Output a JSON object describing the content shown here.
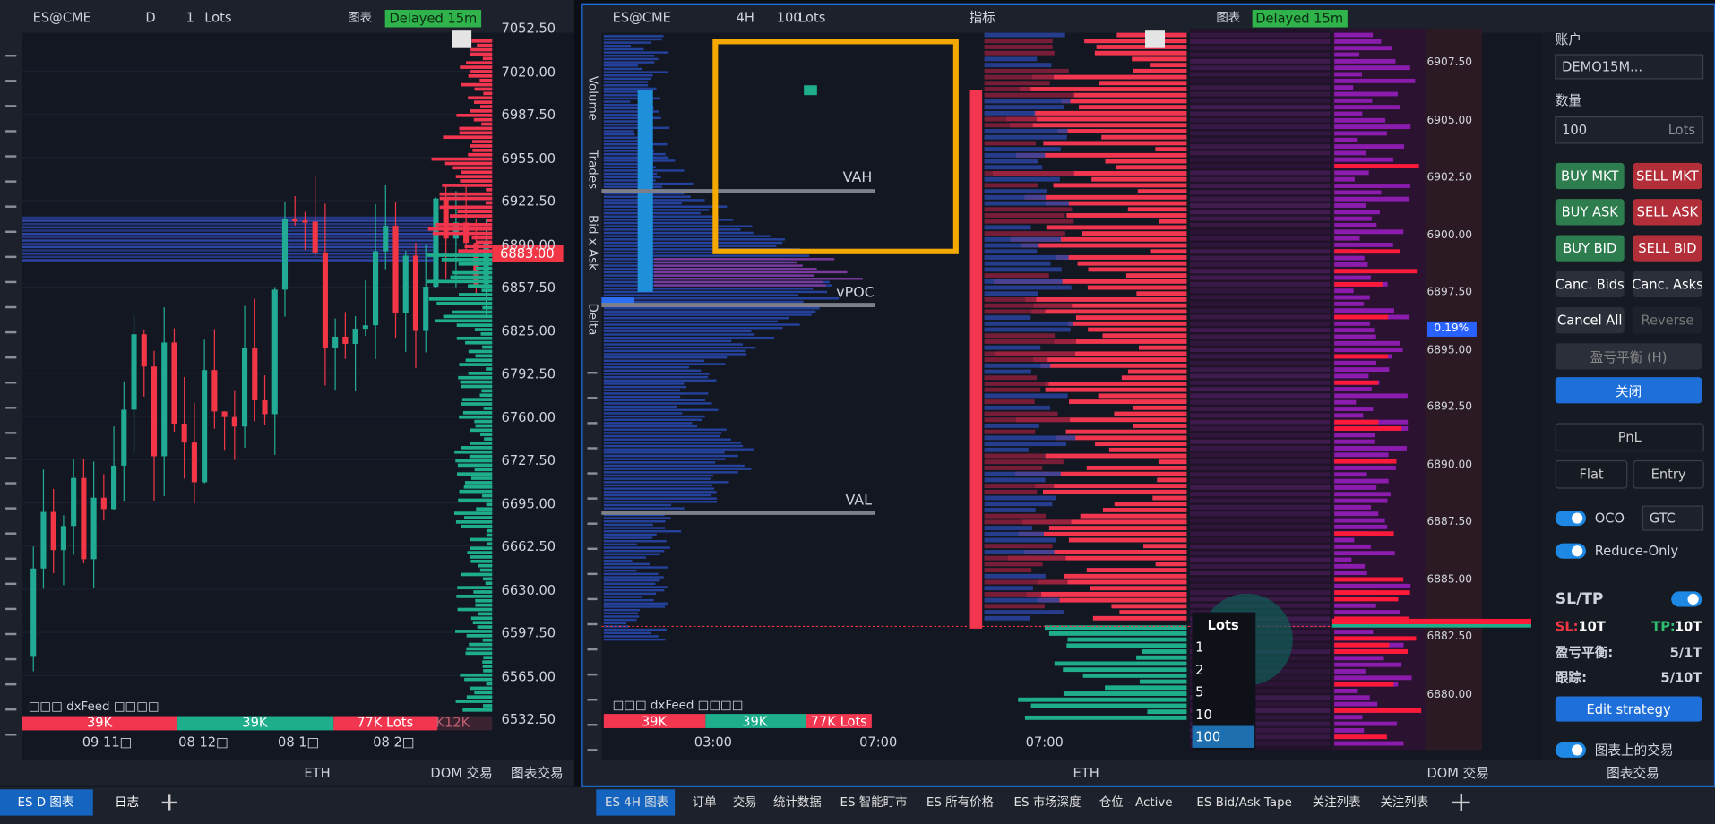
{
  "left_panel": {
    "toolbar": {
      "symbol": "ES@CME",
      "interval": "D",
      "quantity": "1",
      "unit": "Lots",
      "chart_button": "图表",
      "status": "Delayed 15m"
    },
    "price_axis": [
      "7052.50",
      "7020.00",
      "6987.50",
      "6955.00",
      "6922.50",
      "6890.00",
      "6857.50",
      "6825.00",
      "6792.50",
      "6760.00",
      "6727.50",
      "6695.00",
      "6662.50",
      "6630.00",
      "6597.50",
      "6565.00",
      "6532.50"
    ],
    "current_price": "6883.00",
    "data_source": "□□□ dxFeed □□□□",
    "volume_bar": [
      "39K",
      "39K",
      "77K Lots",
      "K12K"
    ],
    "dates": [
      "09 11□",
      "08 12□",
      "08 1□",
      "08 2□"
    ],
    "bottom_bar": {
      "session": "ETH",
      "dom": "DOM 交易",
      "chart_trading": "图表交易"
    }
  },
  "right_panel": {
    "toolbar": {
      "symbol": "ES@CME",
      "interval": "4H",
      "quantity": "100",
      "unit": "Lots",
      "indicators": "指标",
      "chart_button": "图表",
      "status": "Delayed 15m"
    },
    "side_tabs": [
      "Volume",
      "Trades",
      "Bid x Ask",
      "Delta"
    ],
    "levels": {
      "vah": "VAH",
      "vpoc": "vPOC",
      "val": "VAL"
    },
    "price_axis": [
      "6907.50",
      "6905.00",
      "6902.50",
      "6900.00",
      "6897.50",
      "6895.00",
      "6892.50",
      "6890.00",
      "6887.50",
      "6885.00",
      "6882.50",
      "6880.00"
    ],
    "price_badge": "0.19%",
    "times": [
      "03:00",
      "07:00",
      "07:00"
    ],
    "data_source": "□□□ dxFeed □□□□",
    "volume_bar": [
      "39K",
      "39K",
      "77K Lots"
    ],
    "lots_menu": {
      "title": "Lots",
      "options": [
        "1",
        "2",
        "5",
        "10",
        "100"
      ]
    },
    "bottom_bar": {
      "session": "ETH",
      "dom": "DOM 交易",
      "chart_trading": "图表交易"
    }
  },
  "order_panel": {
    "account_label": "账户",
    "account": "DEMO15M...",
    "quantity_label": "数量",
    "quantity": "100",
    "unit": "Lots",
    "buttons": [
      [
        "BUY MKT",
        "SELL MKT"
      ],
      [
        "BUY ASK",
        "SELL ASK"
      ],
      [
        "BUY BID",
        "SELL BID"
      ],
      [
        "Canc. Bids",
        "Canc. Asks"
      ],
      [
        "Cancel All",
        "Reverse"
      ]
    ],
    "breakeven_button": "盈亏平衡 (H)",
    "close_button": "关闭",
    "pnl": "PnL",
    "flat": "Flat",
    "entry": "Entry",
    "oco": "OCO",
    "tif": "GTC",
    "reduce_only": "Reduce-Only",
    "sltp_title": "SL/TP",
    "sl_label": "SL:",
    "sl_value": "10T",
    "tp_label": "TP:",
    "tp_value": "10T",
    "breakeven_label": "盈亏平衡:",
    "breakeven_value": "5/1T",
    "trailing_label": "跟踪:",
    "trailing_value": "5/10T",
    "edit_strategy": "Edit strategy",
    "chart_trades": "图表上的交易"
  },
  "tabs": {
    "left": [
      "ES D 图表",
      "日志"
    ],
    "right": [
      "ES 4H 图表",
      "订单",
      "交易",
      "统计数据",
      "ES 智能盯市",
      "ES 所有价格",
      "ES 市场深度",
      "仓位 - Active",
      "ES Bid/Ask Tape",
      "关注列表",
      "关注列表"
    ]
  }
}
